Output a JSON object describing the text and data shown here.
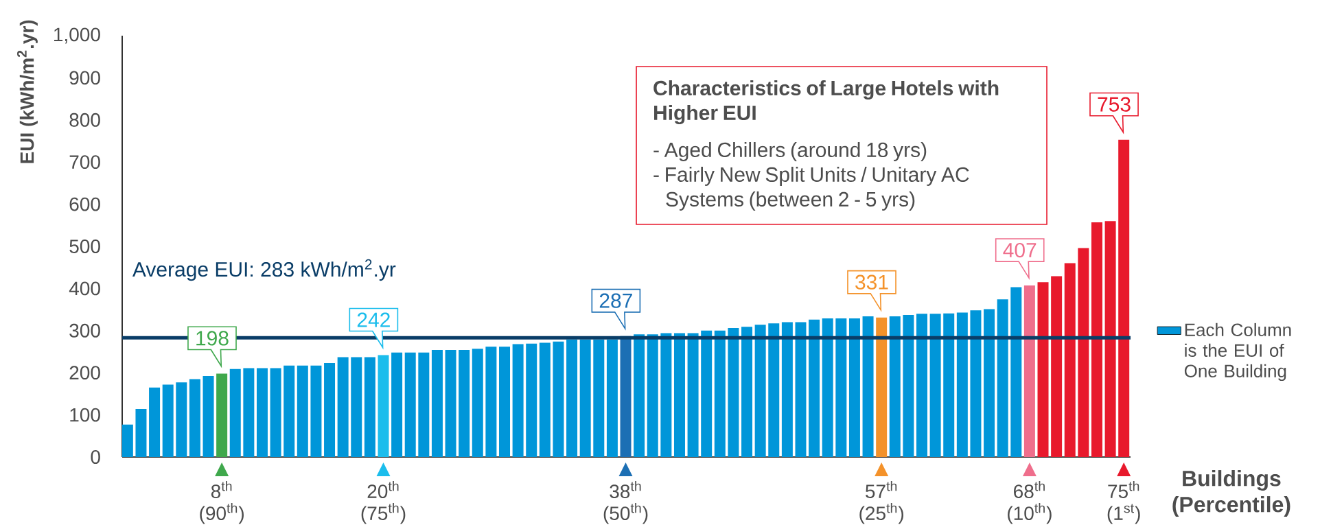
{
  "chart_data": {
    "type": "bar",
    "ylabel": "EUI (kWh/m$^{2}$.yr)",
    "xlabel": "Buildings (Percentile)",
    "categories": [
      null,
      null,
      null,
      null,
      null,
      null,
      null,
      "8$^{th}$ (90$^{th}$)",
      null,
      null,
      null,
      null,
      null,
      null,
      null,
      null,
      null,
      null,
      null,
      "20$^{th}$ (75$^{th}$)",
      null,
      null,
      null,
      null,
      null,
      null,
      null,
      null,
      null,
      null,
      null,
      null,
      null,
      null,
      null,
      null,
      null,
      "38$^{th}$ (50$^{th}$)",
      null,
      null,
      null,
      null,
      null,
      null,
      null,
      null,
      null,
      null,
      null,
      null,
      null,
      null,
      null,
      null,
      null,
      null,
      "57$^{th}$ (25$^{th}$)",
      null,
      null,
      null,
      null,
      null,
      null,
      null,
      null,
      null,
      null,
      "68$^{th}$ (10$^{th}$)",
      null,
      null,
      null,
      null,
      null,
      null,
      "75$^{th}$ (1$^{st}$)"
    ],
    "series": [
      {
        "name": "Each Column is the EUI of One Building",
        "color": "#0096d9",
        "values": [
          77,
          114,
          165,
          172,
          177,
          185,
          192,
          198,
          209,
          211,
          211,
          211,
          217,
          217,
          217,
          223,
          237,
          237,
          237,
          242,
          248,
          248,
          248,
          254,
          254,
          254,
          257,
          262,
          262,
          268,
          269,
          271,
          274,
          279,
          279,
          279,
          279,
          287,
          291,
          291,
          294,
          294,
          294,
          300,
          300,
          306,
          309,
          314,
          317,
          320,
          320,
          326,
          329,
          329,
          329,
          334,
          331,
          334,
          337,
          340,
          340,
          341,
          343,
          348,
          351,
          374,
          403,
          407,
          415,
          429,
          460,
          496,
          557,
          560,
          753
        ],
        "colors": [
          "#0096d9",
          "#0096d9",
          "#0096d9",
          "#0096d9",
          "#0096d9",
          "#0096d9",
          "#0096d9",
          "#3fa84c",
          "#0096d9",
          "#0096d9",
          "#0096d9",
          "#0096d9",
          "#0096d9",
          "#0096d9",
          "#0096d9",
          "#0096d9",
          "#0096d9",
          "#0096d9",
          "#0096d9",
          "#1bbdec",
          "#0096d9",
          "#0096d9",
          "#0096d9",
          "#0096d9",
          "#0096d9",
          "#0096d9",
          "#0096d9",
          "#0096d9",
          "#0096d9",
          "#0096d9",
          "#0096d9",
          "#0096d9",
          "#0096d9",
          "#0096d9",
          "#0096d9",
          "#0096d9",
          "#0096d9",
          "#1c6fb4",
          "#0096d9",
          "#0096d9",
          "#0096d9",
          "#0096d9",
          "#0096d9",
          "#0096d9",
          "#0096d9",
          "#0096d9",
          "#0096d9",
          "#0096d9",
          "#0096d9",
          "#0096d9",
          "#0096d9",
          "#0096d9",
          "#0096d9",
          "#0096d9",
          "#0096d9",
          "#0096d9",
          "#f4922a",
          "#0096d9",
          "#0096d9",
          "#0096d9",
          "#0096d9",
          "#0096d9",
          "#0096d9",
          "#0096d9",
          "#0096d9",
          "#0096d9",
          "#0096d9",
          "#ef6e8c",
          "#e8192c",
          "#e8192c",
          "#e8192c",
          "#e8192c",
          "#e8192c",
          "#e8192c",
          "#e8192c"
        ],
        "value_labels": [
          null,
          null,
          null,
          null,
          null,
          null,
          null,
          "198",
          null,
          null,
          null,
          null,
          null,
          null,
          null,
          null,
          null,
          null,
          null,
          "242",
          null,
          null,
          null,
          null,
          null,
          null,
          null,
          null,
          null,
          null,
          null,
          null,
          null,
          null,
          null,
          null,
          null,
          "287",
          null,
          null,
          null,
          null,
          null,
          null,
          null,
          null,
          null,
          null,
          null,
          null,
          null,
          null,
          null,
          null,
          null,
          null,
          "331",
          null,
          null,
          null,
          null,
          null,
          null,
          null,
          null,
          null,
          null,
          "407",
          null,
          null,
          null,
          null,
          null,
          null,
          "753"
        ]
      }
    ],
    "ylim": [
      0,
      1000
    ],
    "yticks": [
      0,
      100,
      200,
      300,
      400,
      500,
      600,
      700,
      800,
      900,
      {
        "value": 1000,
        "label": "1,000"
      }
    ],
    "ref_lines": [
      {
        "axis": "y",
        "value": 283,
        "label": "Average EUI: 283 kWh/m$^{2}$.yr",
        "color": "#0a3d67"
      }
    ],
    "annotations": [
      "Characteristics of Large Hotels with Higher EUI",
      "- Aged Chillers (around 18 yrs)",
      "- Fairly New Split Units / Unitary AC Systems (between 2 - 5 yrs)"
    ],
    "legend": "right"
  }
}
